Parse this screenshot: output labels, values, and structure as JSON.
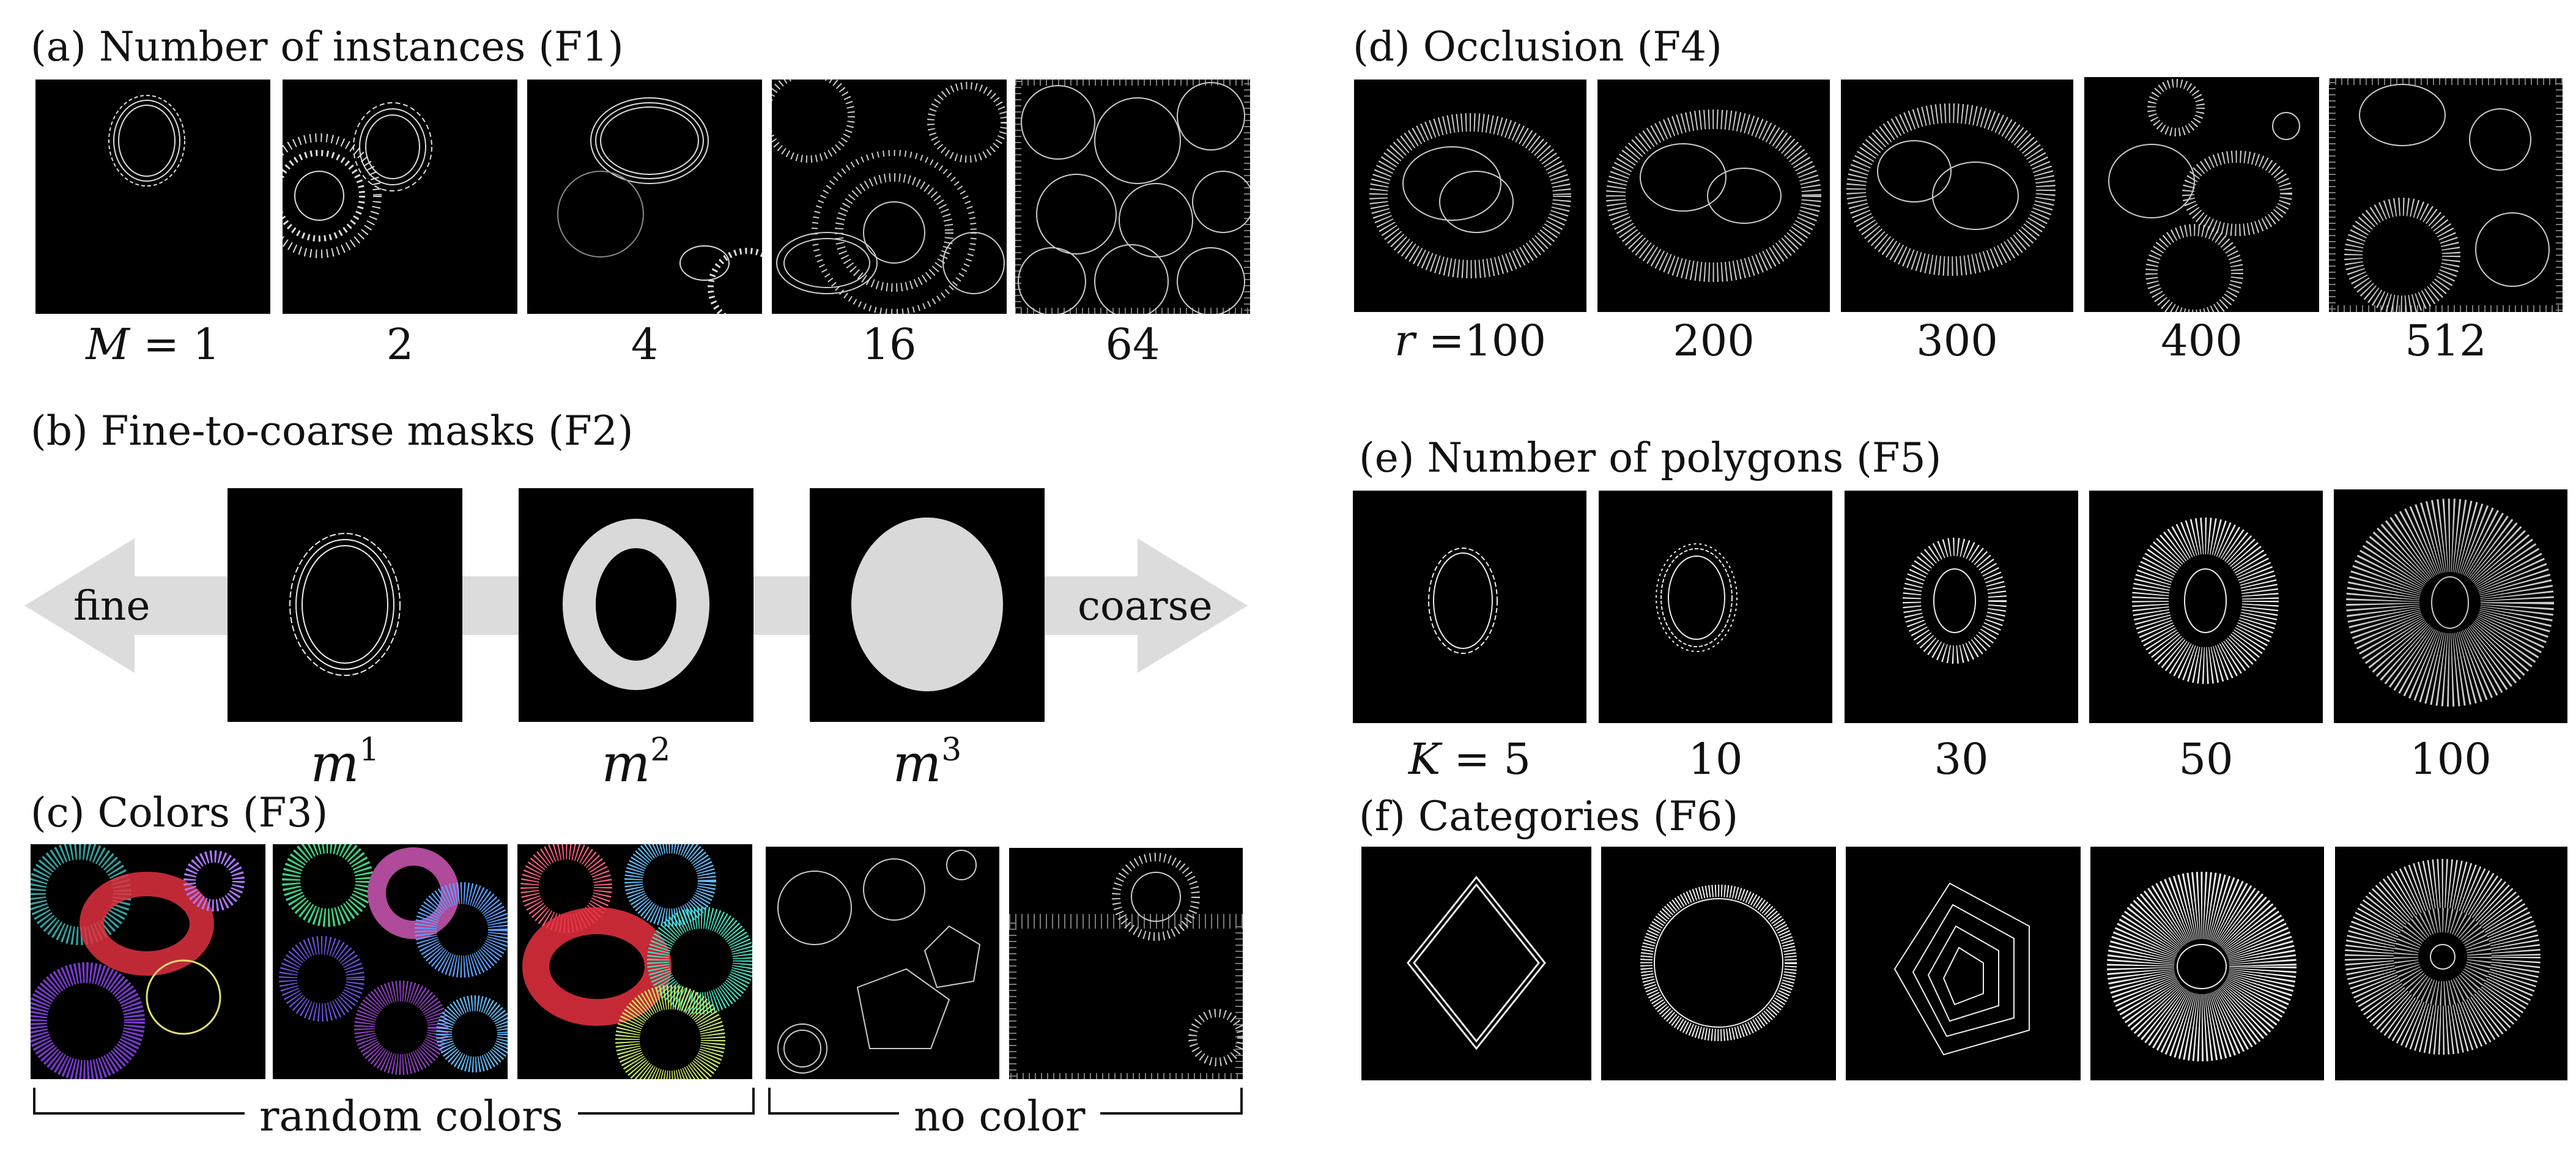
{
  "sections": {
    "a": {
      "title": "(a) Number of instances (F1)",
      "label_var": "M",
      "label_eq": " = 1",
      "labels": [
        "2",
        "4",
        "16",
        "64"
      ]
    },
    "b": {
      "title": "(b) Fine-to-coarse masks (F2)",
      "fine": "fine",
      "coarse": "coarse",
      "mask_base": "m",
      "mask_sups": [
        "1",
        "2",
        "3"
      ]
    },
    "c": {
      "title": "(c) Colors (F3)",
      "random_label": "random colors",
      "nocolor_label": "no color"
    },
    "d": {
      "title": "(d) Occlusion (F4)",
      "label_var": "r",
      "label_eq": " =100",
      "labels": [
        "200",
        "300",
        "400",
        "512"
      ]
    },
    "e": {
      "title": "(e) Number of polygons (F5)",
      "label_var": "K",
      "label_eq": " = 5",
      "labels": [
        "10",
        "30",
        "50",
        "100"
      ]
    },
    "f": {
      "title": "(f) Categories (F6)"
    }
  }
}
